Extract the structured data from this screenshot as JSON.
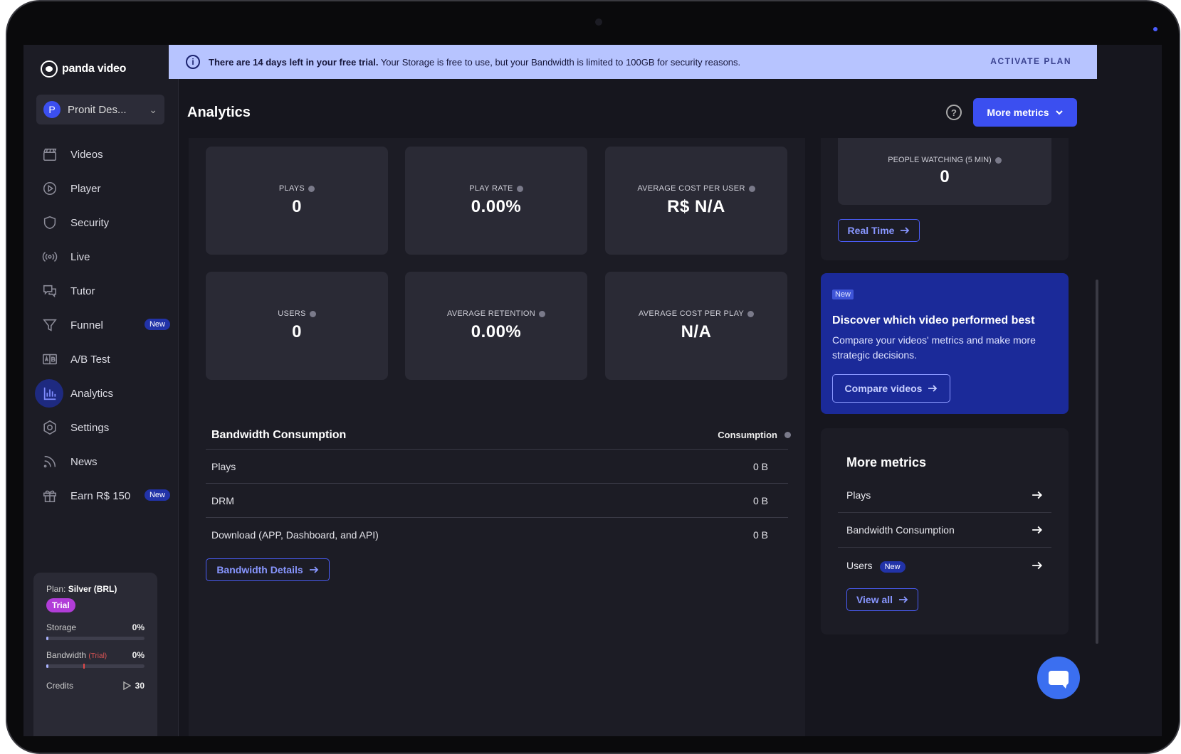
{
  "brand": {
    "name": "panda video"
  },
  "workspace": {
    "avatar_letter": "P",
    "name": "Pronit Des..."
  },
  "sidebar": {
    "items": [
      {
        "label": "Videos",
        "icon": "clapperboard-icon"
      },
      {
        "label": "Player",
        "icon": "play-circle-icon"
      },
      {
        "label": "Security",
        "icon": "shield-icon"
      },
      {
        "label": "Live",
        "icon": "broadcast-icon"
      },
      {
        "label": "Tutor",
        "icon": "chat-bubbles-icon"
      },
      {
        "label": "Funnel",
        "icon": "funnel-icon",
        "badge": "New"
      },
      {
        "label": "A/B Test",
        "icon": "ab-test-icon"
      },
      {
        "label": "Analytics",
        "icon": "bar-chart-icon",
        "active": true
      },
      {
        "label": "Settings",
        "icon": "gear-icon"
      },
      {
        "label": "News",
        "icon": "rss-icon"
      },
      {
        "label": "Earn R$ 150",
        "icon": "gift-icon",
        "badge": "New"
      }
    ]
  },
  "plan": {
    "prefix": "Plan:",
    "name": "Silver (BRL)",
    "status": "Trial",
    "storage": {
      "label": "Storage",
      "value": "0%",
      "fraction": 0.0
    },
    "bandwidth": {
      "label": "Bandwidth",
      "note": "(Trial)",
      "value": "0%",
      "fraction": 0.0
    },
    "credits": {
      "label": "Credits",
      "value": "30"
    }
  },
  "banner": {
    "bold": "There are 14 days left in your free trial.",
    "text": " Your Storage is free to use, but your Bandwidth is limited to 100GB for security reasons.",
    "action": "ACTIVATE PLAN"
  },
  "header": {
    "title": "Analytics",
    "more_metrics_button": "More metrics"
  },
  "metrics": [
    {
      "label": "PLAYS",
      "value": "0"
    },
    {
      "label": "PLAY RATE",
      "value": "0.00%"
    },
    {
      "label": "AVERAGE COST PER USER",
      "value": "R$ N/A"
    },
    {
      "label": "USERS",
      "value": "0"
    },
    {
      "label": "AVERAGE RETENTION",
      "value": "0.00%"
    },
    {
      "label": "AVERAGE COST PER PLAY",
      "value": "N/A"
    }
  ],
  "bandwidth": {
    "title": "Bandwidth Consumption",
    "column": "Consumption",
    "rows": [
      {
        "label": "Plays",
        "value": "0 B"
      },
      {
        "label": "DRM",
        "value": "0 B"
      },
      {
        "label": "Download (APP, Dashboard, and API)",
        "value": "0 B"
      }
    ],
    "details_button": "Bandwidth Details"
  },
  "realtime": {
    "label": "PEOPLE WATCHING (5 MIN)",
    "value": "0",
    "button": "Real Time"
  },
  "promo": {
    "tag": "New",
    "title": "Discover which video performed best",
    "description": "Compare your videos' metrics and make more strategic decisions.",
    "button": "Compare videos"
  },
  "more_metrics": {
    "title": "More metrics",
    "items": [
      {
        "label": "Plays"
      },
      {
        "label": "Bandwidth Consumption"
      },
      {
        "label": "Users",
        "badge": "New"
      }
    ],
    "view_all": "View all"
  }
}
